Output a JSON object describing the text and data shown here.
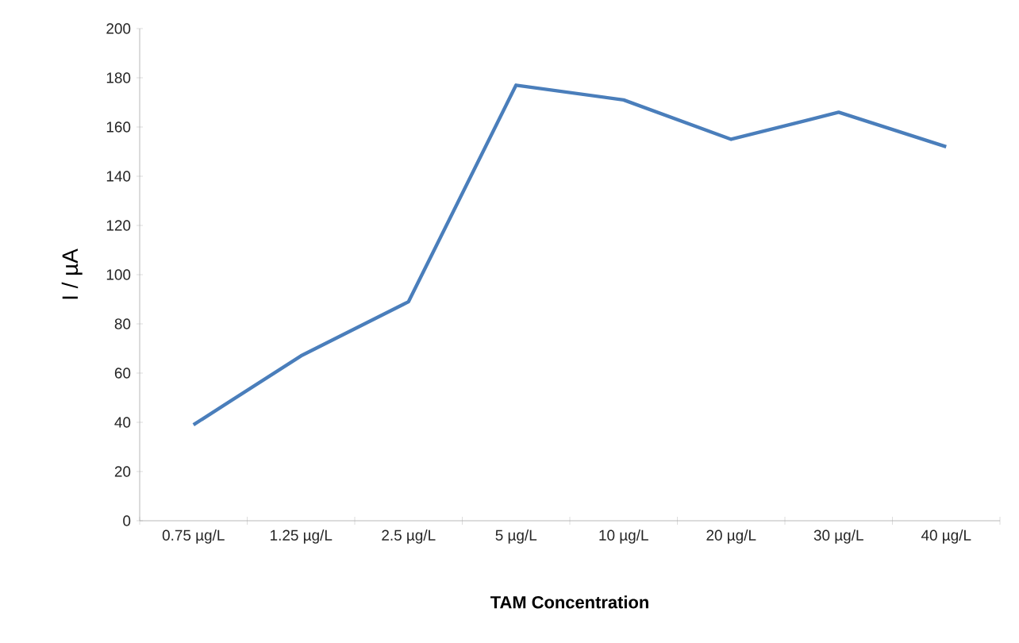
{
  "chart_data": {
    "type": "line",
    "xlabel": "TAM Concentration",
    "ylabel": "I / µA",
    "categories": [
      "0.75 µg/L",
      "1.25 µg/L",
      "2.5 µg/L",
      "5 µg/L",
      "10 µg/L",
      "20 µg/L",
      "30 µg/L",
      "40 µg/L"
    ],
    "series": [
      {
        "color": "#4a7ebb",
        "values": [
          39,
          67,
          89,
          177,
          171,
          155,
          166,
          152
        ]
      }
    ],
    "ylim": [
      0,
      200
    ],
    "yticks": [
      0,
      20,
      40,
      60,
      80,
      100,
      120,
      140,
      160,
      180,
      200
    ],
    "grid": false,
    "marker": "none",
    "line_style": "solid"
  }
}
